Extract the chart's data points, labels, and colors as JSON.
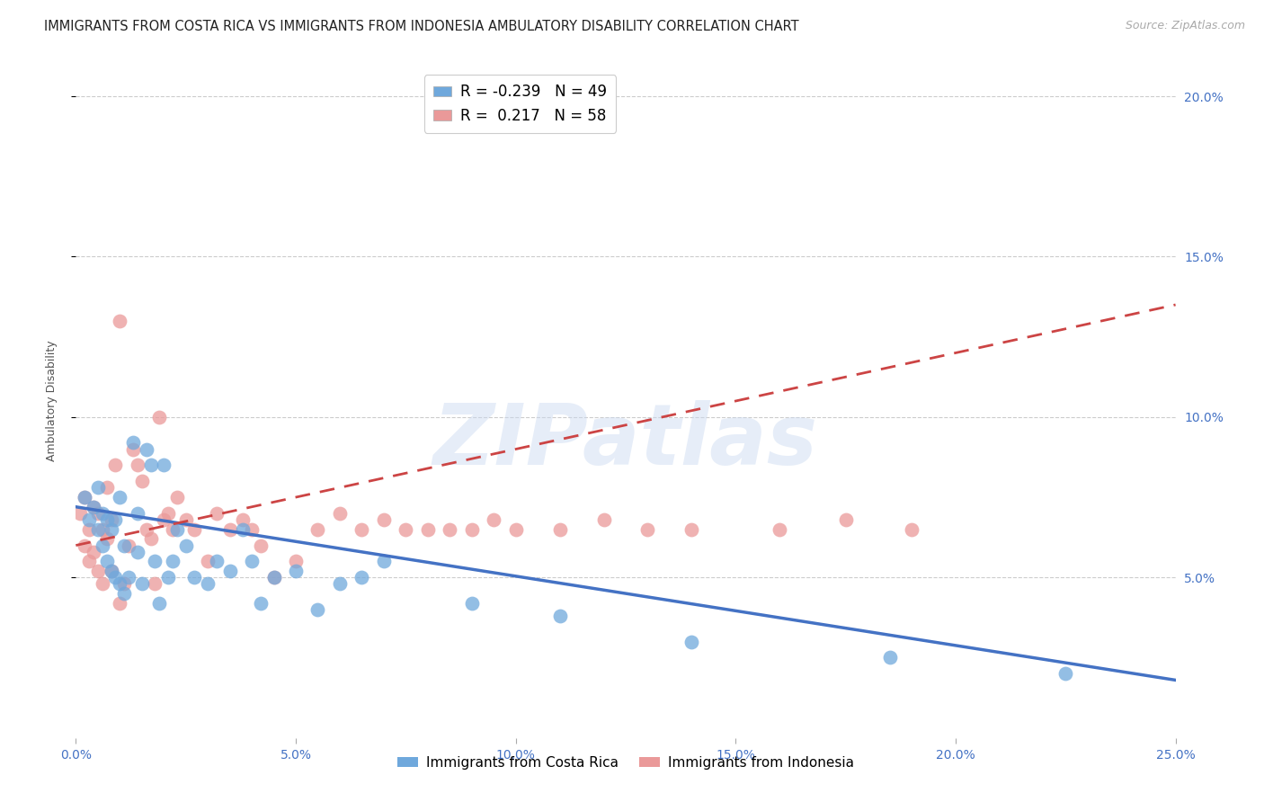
{
  "title": "IMMIGRANTS FROM COSTA RICA VS IMMIGRANTS FROM INDONESIA AMBULATORY DISABILITY CORRELATION CHART",
  "source": "Source: ZipAtlas.com",
  "ylabel": "Ambulatory Disability",
  "xlim": [
    0.0,
    0.25
  ],
  "ylim": [
    0.0,
    0.21
  ],
  "xticks": [
    0.0,
    0.05,
    0.1,
    0.15,
    0.2,
    0.25
  ],
  "yticks": [
    0.05,
    0.1,
    0.15,
    0.2
  ],
  "ytick_labels": [
    "5.0%",
    "10.0%",
    "15.0%",
    "20.0%"
  ],
  "xtick_labels": [
    "0.0%",
    "5.0%",
    "10.0%",
    "15.0%",
    "20.0%",
    "25.0%"
  ],
  "costa_rica_R": -0.239,
  "costa_rica_N": 49,
  "indonesia_R": 0.217,
  "indonesia_N": 58,
  "blue_color": "#6fa8dc",
  "pink_color": "#ea9999",
  "trendline_blue": "#4472c4",
  "trendline_pink": "#cc4444",
  "cr_trend_x": [
    0.0,
    0.25
  ],
  "cr_trend_y": [
    0.072,
    0.018
  ],
  "id_trend_x": [
    0.0,
    0.25
  ],
  "id_trend_y": [
    0.06,
    0.135
  ],
  "watermark": "ZIPatlas",
  "background_color": "#ffffff",
  "grid_color": "#cccccc",
  "axis_color": "#4472c4",
  "title_color": "#222222",
  "title_fontsize": 10.5,
  "label_fontsize": 9,
  "tick_fontsize": 10,
  "source_fontsize": 9,
  "legend_label_blue": "Immigrants from Costa Rica",
  "legend_label_pink": "Immigrants from Indonesia",
  "cr_scatter_x": [
    0.002,
    0.003,
    0.004,
    0.005,
    0.005,
    0.006,
    0.006,
    0.007,
    0.007,
    0.008,
    0.008,
    0.009,
    0.009,
    0.01,
    0.01,
    0.011,
    0.011,
    0.012,
    0.013,
    0.014,
    0.014,
    0.015,
    0.016,
    0.017,
    0.018,
    0.019,
    0.02,
    0.021,
    0.022,
    0.023,
    0.025,
    0.027,
    0.03,
    0.032,
    0.035,
    0.038,
    0.04,
    0.042,
    0.045,
    0.05,
    0.055,
    0.06,
    0.065,
    0.07,
    0.09,
    0.11,
    0.14,
    0.185,
    0.225
  ],
  "cr_scatter_y": [
    0.075,
    0.068,
    0.072,
    0.065,
    0.078,
    0.06,
    0.07,
    0.055,
    0.068,
    0.052,
    0.065,
    0.05,
    0.068,
    0.048,
    0.075,
    0.045,
    0.06,
    0.05,
    0.092,
    0.058,
    0.07,
    0.048,
    0.09,
    0.085,
    0.055,
    0.042,
    0.085,
    0.05,
    0.055,
    0.065,
    0.06,
    0.05,
    0.048,
    0.055,
    0.052,
    0.065,
    0.055,
    0.042,
    0.05,
    0.052,
    0.04,
    0.048,
    0.05,
    0.055,
    0.042,
    0.038,
    0.03,
    0.025,
    0.02
  ],
  "id_scatter_x": [
    0.001,
    0.002,
    0.002,
    0.003,
    0.003,
    0.004,
    0.004,
    0.005,
    0.005,
    0.006,
    0.006,
    0.007,
    0.007,
    0.008,
    0.008,
    0.009,
    0.01,
    0.01,
    0.011,
    0.012,
    0.013,
    0.014,
    0.015,
    0.016,
    0.017,
    0.018,
    0.019,
    0.02,
    0.021,
    0.022,
    0.023,
    0.025,
    0.027,
    0.03,
    0.032,
    0.035,
    0.038,
    0.04,
    0.042,
    0.045,
    0.05,
    0.055,
    0.06,
    0.065,
    0.07,
    0.075,
    0.08,
    0.085,
    0.09,
    0.095,
    0.1,
    0.11,
    0.12,
    0.13,
    0.14,
    0.16,
    0.175,
    0.19
  ],
  "id_scatter_y": [
    0.07,
    0.075,
    0.06,
    0.065,
    0.055,
    0.072,
    0.058,
    0.07,
    0.052,
    0.065,
    0.048,
    0.062,
    0.078,
    0.052,
    0.068,
    0.085,
    0.042,
    0.13,
    0.048,
    0.06,
    0.09,
    0.085,
    0.08,
    0.065,
    0.062,
    0.048,
    0.1,
    0.068,
    0.07,
    0.065,
    0.075,
    0.068,
    0.065,
    0.055,
    0.07,
    0.065,
    0.068,
    0.065,
    0.06,
    0.05,
    0.055,
    0.065,
    0.07,
    0.065,
    0.068,
    0.065,
    0.065,
    0.065,
    0.065,
    0.068,
    0.065,
    0.065,
    0.068,
    0.065,
    0.065,
    0.065,
    0.068,
    0.065
  ]
}
